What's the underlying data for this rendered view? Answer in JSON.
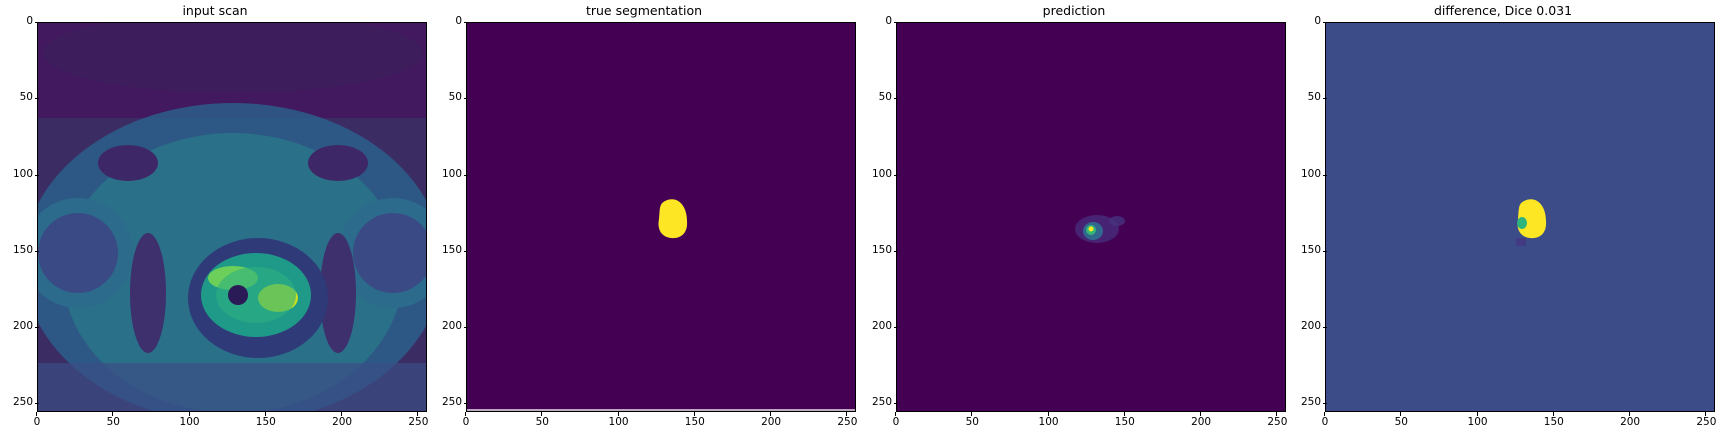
{
  "figure": {
    "panels": [
      {
        "title": "input scan",
        "image": "grayscale pelvic MRI slice with viridis colormap",
        "background_color": "#3b2d63"
      },
      {
        "title": "true segmentation",
        "image": "binary mask with single yellow blob",
        "background_color": "#440154"
      },
      {
        "title": "prediction",
        "image": "probability map with faint green/yellow blob",
        "background_color": "#440154"
      },
      {
        "title": "difference, Dice 0.031",
        "image": "difference map with yellow blob on blue background",
        "background_color": "#3b4c88"
      }
    ],
    "x_ticks": [
      "0",
      "50",
      "100",
      "150",
      "200",
      "250"
    ],
    "y_ticks": [
      "0",
      "50",
      "100",
      "150",
      "200",
      "250"
    ],
    "axis_range": [
      0,
      255
    ]
  }
}
